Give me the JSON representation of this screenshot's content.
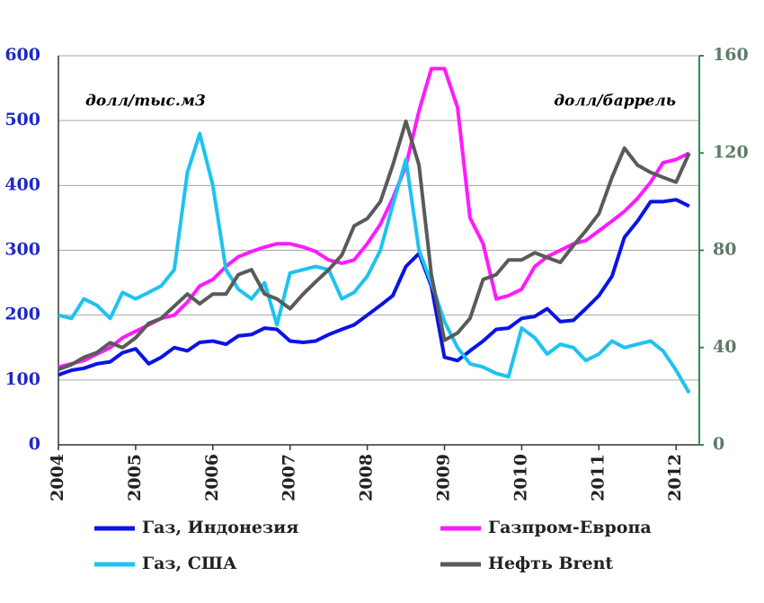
{
  "chart_data": {
    "type": "line",
    "annotations": [
      "долл/тыс.м3",
      "долл/баррель"
    ],
    "x": [
      2004,
      2004.17,
      2004.33,
      2004.5,
      2004.67,
      2004.83,
      2005,
      2005.17,
      2005.33,
      2005.5,
      2005.67,
      2005.83,
      2006,
      2006.17,
      2006.33,
      2006.5,
      2006.67,
      2006.83,
      2007,
      2007.17,
      2007.33,
      2007.5,
      2007.67,
      2007.83,
      2008,
      2008.17,
      2008.33,
      2008.5,
      2008.67,
      2008.83,
      2009,
      2009.17,
      2009.33,
      2009.5,
      2009.67,
      2009.83,
      2010,
      2010.17,
      2010.33,
      2010.5,
      2010.67,
      2010.83,
      2011,
      2011.17,
      2011.33,
      2011.5,
      2011.67,
      2011.83,
      2012,
      2012.17
    ],
    "xlim": [
      2004,
      2012.3
    ],
    "xticks": [
      2004,
      2005,
      2006,
      2007,
      2008,
      2009,
      2010,
      2011,
      2012
    ],
    "ylim": [
      0,
      600
    ],
    "yticks": [
      0,
      100,
      200,
      300,
      400,
      500,
      600
    ],
    "y2lim": [
      0,
      160
    ],
    "y2ticks": [
      0,
      40,
      80,
      120,
      160
    ],
    "grid": true,
    "legend": "bottom",
    "series": [
      {
        "name": "Газ, Индонезия",
        "color": "#0a14e6",
        "values": [
          108,
          115,
          118,
          125,
          128,
          142,
          148,
          125,
          135,
          150,
          145,
          158,
          160,
          155,
          168,
          170,
          180,
          178,
          160,
          158,
          160,
          170,
          178,
          185,
          200,
          215,
          230,
          275,
          295,
          245,
          135,
          130,
          145,
          160,
          178,
          180,
          195,
          198,
          210,
          190,
          192,
          210,
          230,
          260,
          320,
          345,
          375,
          375,
          378,
          368
        ]
      },
      {
        "name": "Газпром-Европа",
        "color": "#ff1aff",
        "values": [
          120,
          125,
          130,
          140,
          150,
          165,
          175,
          185,
          195,
          200,
          220,
          245,
          255,
          275,
          290,
          298,
          305,
          310,
          310,
          305,
          298,
          285,
          280,
          285,
          310,
          340,
          380,
          430,
          515,
          580,
          580,
          520,
          350,
          310,
          225,
          230,
          240,
          275,
          290,
          300,
          310,
          315,
          330,
          345,
          360,
          380,
          405,
          435,
          440,
          450
        ]
      },
      {
        "name": "Газ, США",
        "color": "#1ec3ef",
        "values": [
          200,
          195,
          225,
          215,
          195,
          235,
          225,
          235,
          245,
          270,
          420,
          480,
          400,
          270,
          240,
          225,
          250,
          185,
          265,
          270,
          275,
          270,
          225,
          235,
          260,
          300,
          370,
          440,
          300,
          250,
          190,
          150,
          125,
          120,
          110,
          105,
          180,
          165,
          140,
          155,
          150,
          130,
          140,
          160,
          150,
          155,
          160,
          145,
          115,
          80
        ]
      },
      {
        "name": "Нефть Brent",
        "color": "#5a5a5a",
        "axis": "y2",
        "values": [
          31,
          33,
          36,
          38,
          42,
          40,
          44,
          50,
          52,
          57,
          62,
          58,
          62,
          62,
          70,
          72,
          62,
          60,
          56,
          62,
          67,
          72,
          78,
          90,
          93,
          100,
          115,
          133,
          115,
          70,
          43,
          46,
          52,
          68,
          70,
          76,
          76,
          79,
          77,
          75,
          82,
          88,
          95,
          110,
          122,
          115,
          112,
          110,
          108,
          120
        ]
      }
    ]
  }
}
